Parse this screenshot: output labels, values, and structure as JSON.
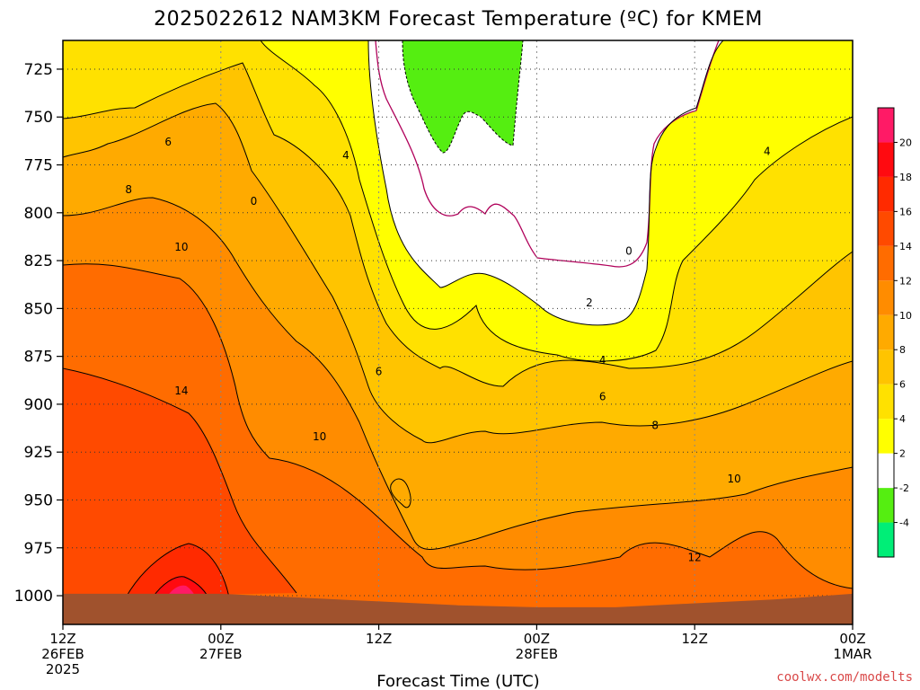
{
  "chart_data": {
    "type": "heatmap",
    "title": "2025022612 NAM3KM Forecast Temperature (ºC) for KMEM",
    "xlabel": "Forecast Time (UTC)",
    "ylabel": "",
    "credit": "coolwx.com/modelts",
    "x_ticks": [
      {
        "hour": 0,
        "line1": "12Z",
        "line2": "26FEB",
        "line3": "2025"
      },
      {
        "hour": 12,
        "line1": "00Z",
        "line2": "27FEB",
        "line3": ""
      },
      {
        "hour": 24,
        "line1": "12Z",
        "line2": "",
        "line3": ""
      },
      {
        "hour": 36,
        "line1": "00Z",
        "line2": "28FEB",
        "line3": ""
      },
      {
        "hour": 48,
        "line1": "12Z",
        "line2": "",
        "line3": ""
      },
      {
        "hour": 60,
        "line1": "00Z",
        "line2": "1MAR",
        "line3": ""
      }
    ],
    "xlim": [
      0,
      60
    ],
    "y_ticks": [
      725,
      750,
      775,
      800,
      825,
      850,
      875,
      900,
      925,
      950,
      975,
      1000
    ],
    "ylim": [
      1015,
      710
    ],
    "colorbar": {
      "levels": [
        -6,
        -4,
        -2,
        2,
        4,
        6,
        8,
        10,
        12,
        14,
        16,
        18,
        20,
        22
      ],
      "tick_labels": [
        "-4",
        "-2",
        "2",
        "4",
        "6",
        "8",
        "10",
        "12",
        "14",
        "16",
        "18",
        "20"
      ],
      "colors": [
        "#00ee77",
        "#55ee11",
        "#ffffff",
        "#ffff00",
        "#ffe100",
        "#ffc400",
        "#ffaa00",
        "#ff8c00",
        "#ff6c00",
        "#ff4a00",
        "#ff2a00",
        "#ff0a10",
        "#ff1a66"
      ]
    },
    "contours": [
      {
        "value": 0,
        "label": "0",
        "label_points": [
          {
            "x": 14.5,
            "y": 794
          },
          {
            "x": 43,
            "y": 820
          }
        ]
      },
      {
        "value": 2,
        "label": "2",
        "label_points": [
          {
            "x": 40,
            "y": 847
          }
        ]
      },
      {
        "value": 4,
        "label": "4",
        "label_points": [
          {
            "x": 21.5,
            "y": 770
          },
          {
            "x": 41,
            "y": 877
          },
          {
            "x": 53.5,
            "y": 768
          }
        ]
      },
      {
        "value": 6,
        "label": "6",
        "label_points": [
          {
            "x": 8,
            "y": 763
          },
          {
            "x": 24,
            "y": 883
          },
          {
            "x": 41,
            "y": 896
          }
        ]
      },
      {
        "value": 8,
        "label": "8",
        "label_points": [
          {
            "x": 5,
            "y": 788
          },
          {
            "x": 45,
            "y": 911
          }
        ]
      },
      {
        "value": 10,
        "label": "10",
        "label_points": [
          {
            "x": 9,
            "y": 818
          },
          {
            "x": 19.5,
            "y": 917
          },
          {
            "x": 51,
            "y": 939
          }
        ]
      },
      {
        "value": 12,
        "label": "12",
        "label_points": [
          {
            "x": 48,
            "y": 980
          }
        ]
      },
      {
        "value": 14,
        "label": "14",
        "label_points": [
          {
            "x": 9,
            "y": 893
          }
        ]
      }
    ],
    "surface_color": "#a0522d",
    "surface_pressure": [
      {
        "hour": 0,
        "p": 999
      },
      {
        "hour": 6,
        "p": 999
      },
      {
        "hour": 12,
        "p": 999
      },
      {
        "hour": 18,
        "p": 1001
      },
      {
        "hour": 24,
        "p": 1003
      },
      {
        "hour": 30,
        "p": 1005
      },
      {
        "hour": 36,
        "p": 1006
      },
      {
        "hour": 42,
        "p": 1006
      },
      {
        "hour": 48,
        "p": 1004
      },
      {
        "hour": 54,
        "p": 1002
      },
      {
        "hour": 60,
        "p": 999
      }
    ]
  }
}
